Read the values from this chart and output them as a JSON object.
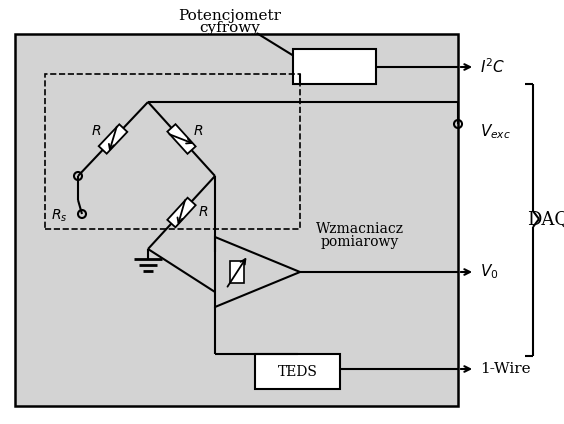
{
  "bg_color": "#d3d3d3",
  "white": "#ffffff",
  "black": "#000000",
  "title1": "Potencjometr",
  "title2": "cyfrowy",
  "label_i2c": "$I^2C$",
  "label_vexc": "$V_{exc}$",
  "label_v0": "$V_0$",
  "label_daq": "DAQ",
  "label_wzmacniacz1": "Wzmacniacz",
  "label_wzmacniacz2": "pomiarowy",
  "label_teds": "TEDS",
  "label_1wire": "1-Wire",
  "label_R1": "$R$",
  "label_R2": "$R$",
  "label_R3": "$R$",
  "label_Rs": "$R_s$",
  "figsize": [
    5.64,
    4.24
  ],
  "dpi": 100
}
